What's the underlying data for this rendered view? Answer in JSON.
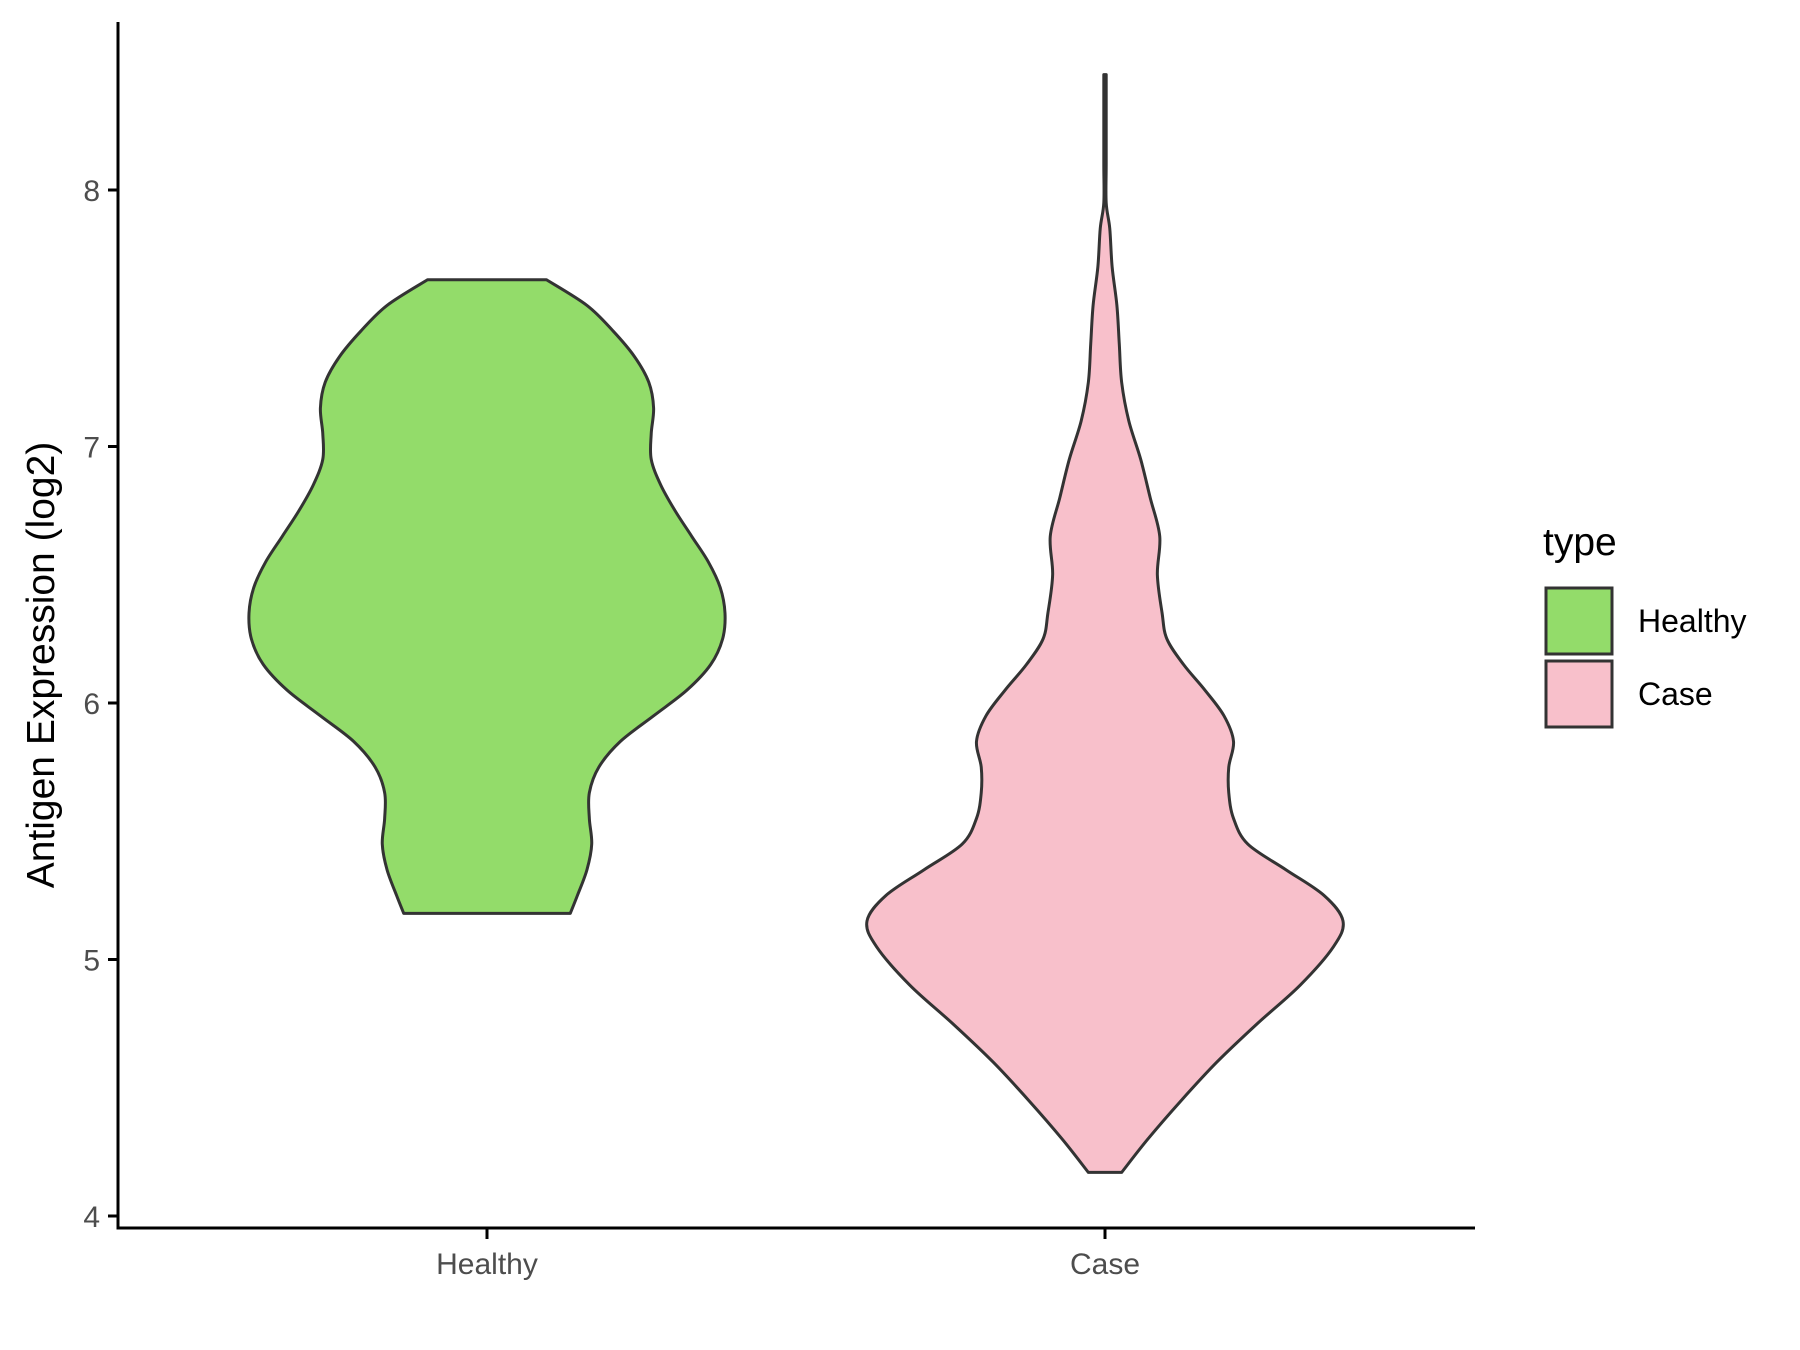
{
  "chart_data": {
    "type": "violin",
    "ylabel": "Antigen Expression (log2)",
    "xlabel": "",
    "ylim": [
      3.95,
      8.65
    ],
    "yticks": [
      4,
      5,
      6,
      7,
      8
    ],
    "categories": [
      "Healthy",
      "Case"
    ],
    "legend": {
      "title": "type",
      "placement": "right",
      "entries": [
        "Healthy",
        "Case"
      ]
    },
    "grid": false,
    "series": [
      {
        "name": "Healthy",
        "color": "#93dc6a",
        "min": 5.18,
        "max": 7.65,
        "density": [
          [
            5.18,
            0.35
          ],
          [
            5.25,
            0.38
          ],
          [
            5.35,
            0.42
          ],
          [
            5.45,
            0.44
          ],
          [
            5.55,
            0.43
          ],
          [
            5.65,
            0.43
          ],
          [
            5.75,
            0.47
          ],
          [
            5.85,
            0.56
          ],
          [
            5.95,
            0.7
          ],
          [
            6.05,
            0.84
          ],
          [
            6.15,
            0.94
          ],
          [
            6.25,
            0.99
          ],
          [
            6.35,
            1.0
          ],
          [
            6.45,
            0.98
          ],
          [
            6.55,
            0.93
          ],
          [
            6.65,
            0.86
          ],
          [
            6.75,
            0.79
          ],
          [
            6.85,
            0.73
          ],
          [
            6.95,
            0.69
          ],
          [
            7.05,
            0.69
          ],
          [
            7.15,
            0.7
          ],
          [
            7.25,
            0.68
          ],
          [
            7.35,
            0.62
          ],
          [
            7.45,
            0.53
          ],
          [
            7.55,
            0.42
          ],
          [
            7.65,
            0.25
          ]
        ]
      },
      {
        "name": "Case",
        "color": "#f8c0cb",
        "min": 4.17,
        "max": 8.45,
        "density": [
          [
            4.17,
            0.07
          ],
          [
            4.3,
            0.18
          ],
          [
            4.45,
            0.32
          ],
          [
            4.6,
            0.47
          ],
          [
            4.75,
            0.64
          ],
          [
            4.9,
            0.82
          ],
          [
            5.05,
            0.96
          ],
          [
            5.15,
            1.0
          ],
          [
            5.25,
            0.92
          ],
          [
            5.35,
            0.76
          ],
          [
            5.45,
            0.6
          ],
          [
            5.55,
            0.54
          ],
          [
            5.65,
            0.52
          ],
          [
            5.75,
            0.52
          ],
          [
            5.85,
            0.54
          ],
          [
            5.95,
            0.5
          ],
          [
            6.05,
            0.42
          ],
          [
            6.15,
            0.33
          ],
          [
            6.25,
            0.26
          ],
          [
            6.35,
            0.24
          ],
          [
            6.5,
            0.22
          ],
          [
            6.65,
            0.23
          ],
          [
            6.8,
            0.19
          ],
          [
            6.95,
            0.15
          ],
          [
            7.1,
            0.1
          ],
          [
            7.25,
            0.07
          ],
          [
            7.4,
            0.06
          ],
          [
            7.55,
            0.05
          ],
          [
            7.7,
            0.03
          ],
          [
            7.85,
            0.02
          ],
          [
            7.95,
            0.005
          ],
          [
            8.1,
            0.005
          ],
          [
            8.3,
            0.005
          ],
          [
            8.45,
            0.005
          ]
        ]
      }
    ]
  }
}
